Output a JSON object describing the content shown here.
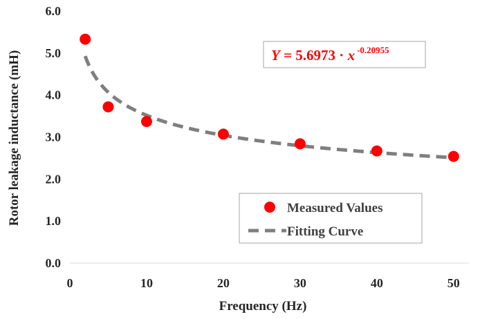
{
  "chart_data": {
    "type": "scatter",
    "xlabel": "Frequency (Hz)",
    "ylabel": "Rotor leakage inductance (mH)",
    "xlim": [
      0,
      52
    ],
    "ylim": [
      0,
      6
    ],
    "x_ticks": [
      "0",
      "10",
      "20",
      "30",
      "40",
      "50"
    ],
    "y_ticks": [
      "0.0",
      "1.0",
      "2.0",
      "3.0",
      "4.0",
      "5.0",
      "6.0"
    ],
    "grid": false,
    "legend_position": "bottom-right",
    "series": [
      {
        "name": "Measured Values",
        "type": "scatter",
        "color": "#ff0000",
        "x": [
          2,
          5,
          10,
          20,
          30,
          40,
          50
        ],
        "y": [
          5.33,
          3.72,
          3.37,
          3.07,
          2.84,
          2.67,
          2.54
        ]
      },
      {
        "name": "Fitting Curve",
        "type": "line",
        "style": "dashed",
        "color": "#7f7f7f",
        "equation": {
          "coefficient": 5.6973,
          "exponent": -0.20955,
          "x_start": 2,
          "x_end": 50
        }
      }
    ],
    "annotation": {
      "y_symbol": "Y",
      "equals": " = 5.6973 · ",
      "x_symbol": "x",
      "exponent_text": "-0.20955"
    }
  }
}
